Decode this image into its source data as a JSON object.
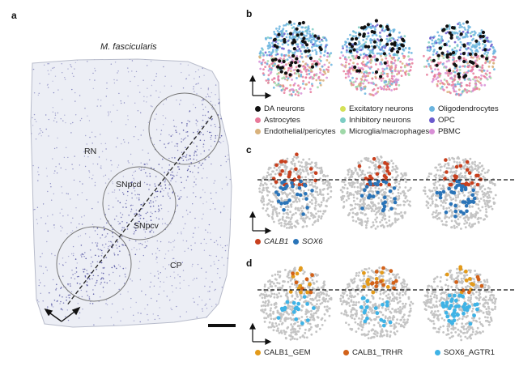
{
  "panels": {
    "a": {
      "label": "a",
      "species": "M. fascicularis",
      "regions": [
        "RN",
        "SNpcd",
        "SNpcv",
        "CP"
      ]
    },
    "b": {
      "label": "b",
      "legend": [
        {
          "label": "DA neurons",
          "color": "#111111"
        },
        {
          "label": "Excitatory neurons",
          "color": "#d4e157"
        },
        {
          "label": "Oligodendrocytes",
          "color": "#6ab4df"
        },
        {
          "label": "Astrocytes",
          "color": "#e87a9a"
        },
        {
          "label": "Inhibitory neurons",
          "color": "#7ccdc4"
        },
        {
          "label": "OPC",
          "color": "#6a5acd"
        },
        {
          "label": "Endothelial/pericytes",
          "color": "#d9b27c"
        },
        {
          "label": "Microglia/macrophages",
          "color": "#9fd8a8"
        },
        {
          "label": "PBMC",
          "color": "#d88fd6"
        }
      ]
    },
    "c": {
      "label": "c",
      "legend": [
        {
          "label": "CALB1",
          "color": "#c8401e"
        },
        {
          "label": "SOX6",
          "color": "#2a74b8"
        }
      ]
    },
    "d": {
      "label": "d",
      "legend": [
        {
          "label": "CALB1_GEM",
          "color": "#e39a1a"
        },
        {
          "label": "CALB1_TRHR",
          "color": "#d2621a"
        },
        {
          "label": "SOX6_AGTR1",
          "color": "#3fb3e6"
        }
      ]
    }
  },
  "colors": {
    "background_gray": "#c4c4c4",
    "tissue_stain": "#5a5aa8"
  }
}
